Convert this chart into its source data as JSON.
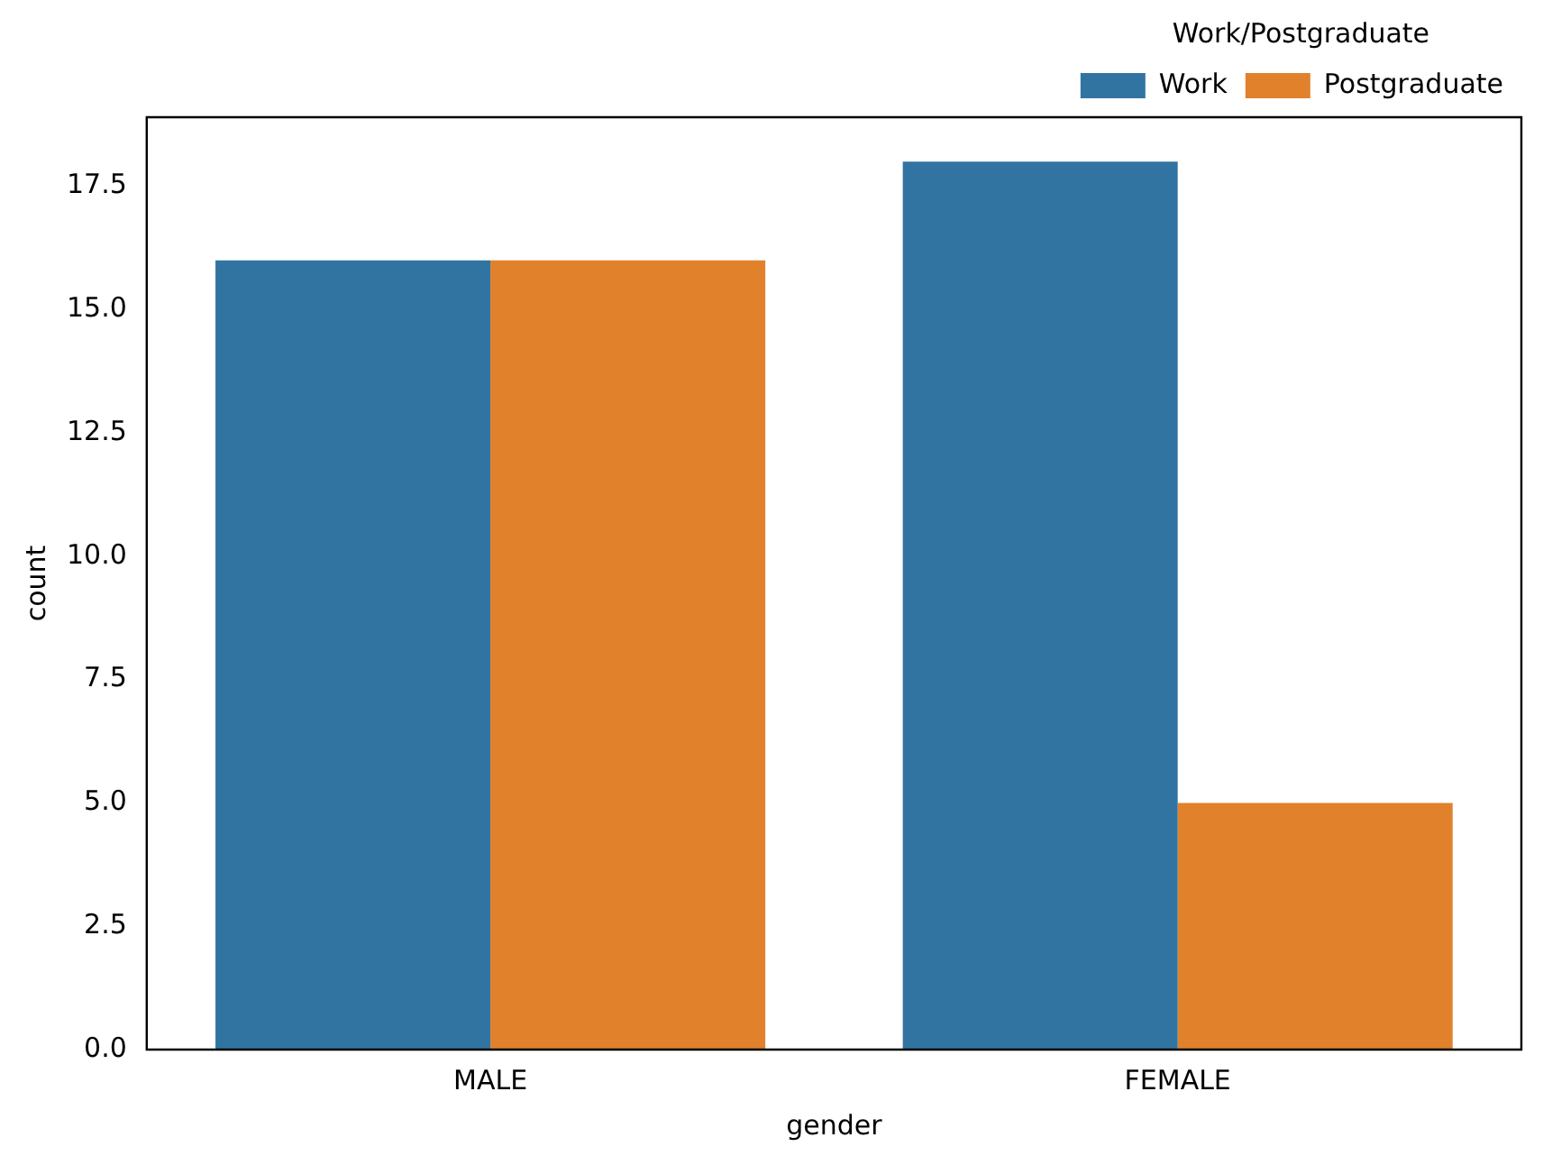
{
  "chart_data": {
    "type": "bar",
    "xlabel": "gender",
    "ylabel": "count",
    "legend_title": "Work/Postgraduate",
    "legend": "top right",
    "categories": [
      "MALE",
      "FEMALE"
    ],
    "series": [
      {
        "name": "Work",
        "color": "#3274a1",
        "values": [
          16,
          18
        ]
      },
      {
        "name": "Postgraduate",
        "color": "#e1812c",
        "values": [
          16,
          5
        ]
      }
    ],
    "ylim": [
      0,
      18.9
    ],
    "yticks": [
      {
        "value": 0,
        "label": "0.0"
      },
      2.5,
      {
        "value": 5,
        "label": "5.0"
      },
      7.5,
      {
        "value": 10,
        "label": "10.0"
      },
      12.5,
      {
        "value": 15,
        "label": "15.0"
      },
      17.5
    ]
  }
}
